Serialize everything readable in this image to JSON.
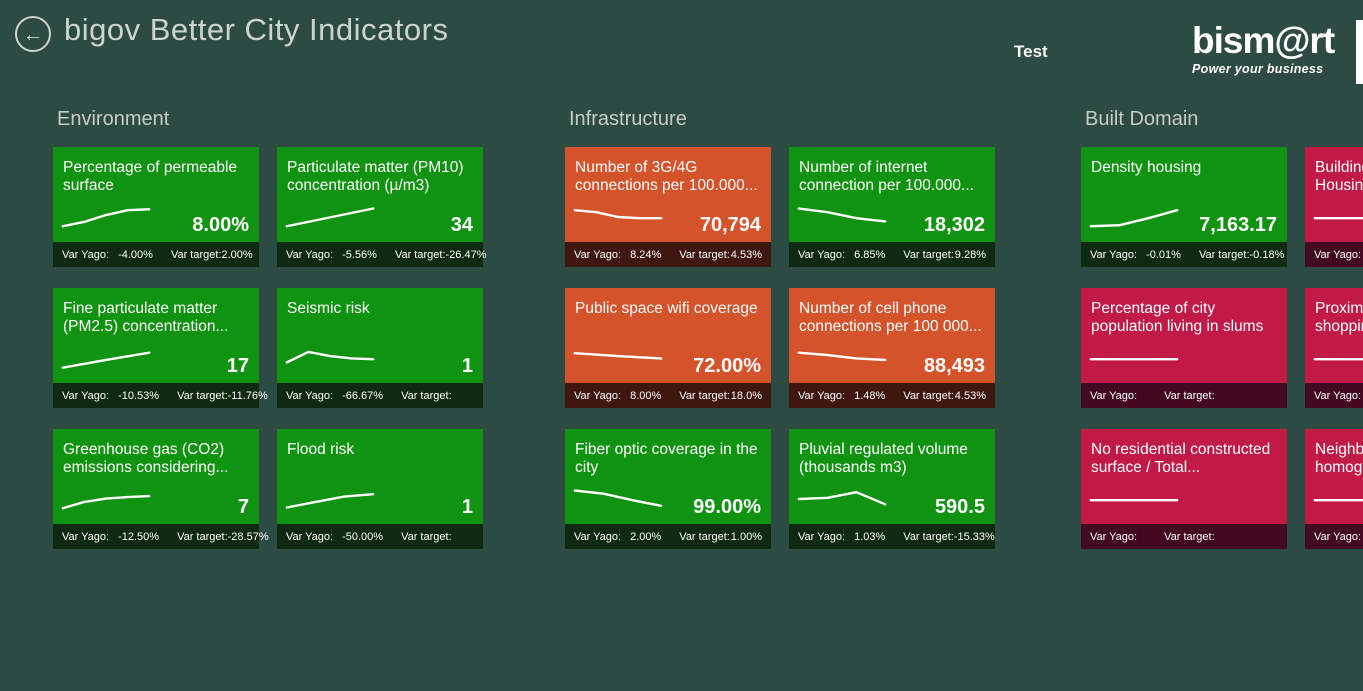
{
  "header": {
    "back_glyph": "←",
    "title": "bigov Better City Indicators",
    "test_label": "Test",
    "logo_brand": "bism@rt",
    "logo_tagline": "Power your business"
  },
  "footer_labels": {
    "yago": "Var Yago:",
    "target": "Var target:"
  },
  "colors": {
    "background": "#2d4a43",
    "green": "#109310",
    "green_footer": "#0e2a10",
    "orange": "#d5532b",
    "orange_footer": "#3f1710",
    "crimson": "#c11a47",
    "crimson_footer": "#430920",
    "text_light": "#ccd4cf"
  },
  "groups": [
    {
      "name": "Environment",
      "tiles": [
        {
          "title": "Percentage of permeable surface",
          "value": "8.00%",
          "var_yago": "-4.00%",
          "var_target": "2.00%",
          "color": "green",
          "spark": [
            0.88,
            0.7,
            0.42,
            0.22,
            0.18
          ]
        },
        {
          "title": "Particulate matter (PM10) concentration (µ/m3)",
          "value": "34",
          "var_yago": "-5.56%",
          "var_target": "-26.47%",
          "color": "green",
          "spark": [
            0.88,
            0.15
          ]
        },
        {
          "title": "Fine particulate matter (PM2.5) concentration...",
          "value": "17",
          "var_yago": "-10.53%",
          "var_target": "-11.76%",
          "color": "green",
          "spark": [
            0.9,
            0.58,
            0.28
          ]
        },
        {
          "title": "Seismic risk",
          "value": "1",
          "var_yago": "-66.67%",
          "var_target": "",
          "color": "green",
          "spark": [
            0.68,
            0.25,
            0.42,
            0.52,
            0.55
          ]
        },
        {
          "title": "Greenhouse gas (CO2) emissions considering...",
          "value": "7",
          "var_yago": "-12.50%",
          "var_target": "-28.57%",
          "color": "green",
          "spark": [
            0.88,
            0.62,
            0.48,
            0.42,
            0.38
          ]
        },
        {
          "title": "Flood risk",
          "value": "1",
          "var_yago": "-50.00%",
          "var_target": "",
          "color": "green",
          "spark": [
            0.85,
            0.62,
            0.4,
            0.3
          ]
        }
      ]
    },
    {
      "name": "Infrastructure",
      "tiles": [
        {
          "title": "Number of 3G/4G connections per 100.000...",
          "value": "70,794",
          "var_yago": "8.24%",
          "var_target": "4.53%",
          "color": "orange",
          "spark": [
            0.22,
            0.3,
            0.5,
            0.55,
            0.55
          ]
        },
        {
          "title": "Number of internet connection per 100.000...",
          "value": "18,302",
          "var_yago": "6.85%",
          "var_target": "9.28%",
          "color": "green",
          "spark": [
            0.15,
            0.3,
            0.55,
            0.68
          ]
        },
        {
          "title": "Public space  wifi coverage",
          "value": "72.00%",
          "var_yago": "8.00%",
          "var_target": "18.0%",
          "color": "orange",
          "spark": [
            0.3,
            0.42,
            0.52
          ]
        },
        {
          "title": "Number of cell phone connections per 100 000...",
          "value": "88,493",
          "var_yago": "1.48%",
          "var_target": "4.53%",
          "color": "orange",
          "spark": [
            0.28,
            0.38,
            0.52,
            0.58
          ]
        },
        {
          "title": "Fiber optic coverage in the city",
          "value": "99.00%",
          "var_yago": "2.00%",
          "var_target": "1.00%",
          "color": "green",
          "spark": [
            0.15,
            0.28,
            0.55,
            0.78
          ]
        },
        {
          "title": "Pluvial regulated volume (thousands m3)",
          "value": "590.5",
          "var_yago": "1.03%",
          "var_target": "-15.33%",
          "color": "green",
          "spark": [
            0.5,
            0.45,
            0.22,
            0.72
          ]
        }
      ]
    },
    {
      "name": "Built Domain",
      "tiles": [
        {
          "title": "Density housing",
          "value": "7,163.17",
          "var_yago": "-0.01%",
          "var_target": "-0.18%",
          "color": "green",
          "spark": [
            0.88,
            0.84,
            0.55,
            0.22
          ]
        },
        {
          "title": "Building\nHousing...",
          "value": "",
          "var_yago": "",
          "var_target": "",
          "color": "crimson",
          "spark": [
            0.55,
            0.55
          ]
        },
        {
          "title": "Percentage of city population living in slums",
          "value": "",
          "var_yago": "",
          "var_target": "",
          "color": "crimson",
          "spark": [
            0.55,
            0.55
          ]
        },
        {
          "title": "Proximity\nshopping...",
          "value": "",
          "var_yago": "",
          "var_target": "",
          "color": "crimson",
          "spark": [
            0.55,
            0.55
          ]
        },
        {
          "title": "No residential constructed surface / Total...",
          "value": "",
          "var_yago": "",
          "var_target": "",
          "color": "crimson",
          "spark": [
            0.55,
            0.55
          ]
        },
        {
          "title": "Neighborhood\nhomogeneity...",
          "value": "",
          "var_yago": "",
          "var_target": "",
          "color": "crimson",
          "spark": [
            0.55,
            0.55
          ]
        }
      ]
    }
  ]
}
